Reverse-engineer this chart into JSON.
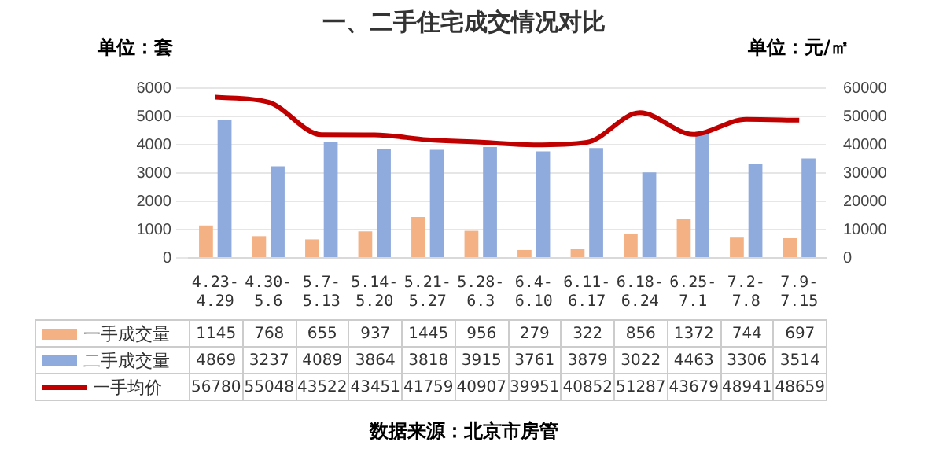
{
  "chart_data": {
    "type": "bar",
    "title": "一、二手住宅成交情况对比",
    "ylabel": "单位：套",
    "y2label": "单位：元/㎡",
    "categories": [
      "4.23-4.29",
      "4.30-5.6",
      "5.7-5.13",
      "5.14-5.20",
      "5.21-5.27",
      "5.28-6.3",
      "6.4-6.10",
      "6.11-6.17",
      "6.18-6.24",
      "6.25-7.1",
      "7.2-7.8",
      "7.9-7.15"
    ],
    "series": [
      {
        "name": "一手成交量",
        "color": "#f4b183",
        "values": [
          1145,
          768,
          655,
          937,
          1445,
          956,
          279,
          322,
          856,
          1372,
          744,
          697
        ]
      },
      {
        "name": "二手成交量",
        "color": "#8faadc",
        "values": [
          4869,
          3237,
          4089,
          3864,
          3818,
          3915,
          3761,
          3879,
          3022,
          4463,
          3306,
          3514
        ]
      },
      {
        "name": "一手均价",
        "type": "line",
        "axis": "y2",
        "color": "#c00000",
        "values": [
          56780,
          55048,
          43522,
          43451,
          41759,
          40907,
          39951,
          40852,
          51287,
          43679,
          48941,
          48659
        ]
      }
    ],
    "ylim": [
      0,
      6000
    ],
    "yticks": [
      0,
      1000,
      2000,
      3000,
      4000,
      5000,
      6000
    ],
    "y2lim": [
      0,
      60000
    ],
    "y2ticks": [
      0,
      10000,
      20000,
      30000,
      40000,
      50000,
      60000
    ],
    "grid": "y",
    "legend": "bottom",
    "data_labels": true,
    "marker": "none",
    "annotations": [
      "数据来源：北京市房管"
    ]
  }
}
